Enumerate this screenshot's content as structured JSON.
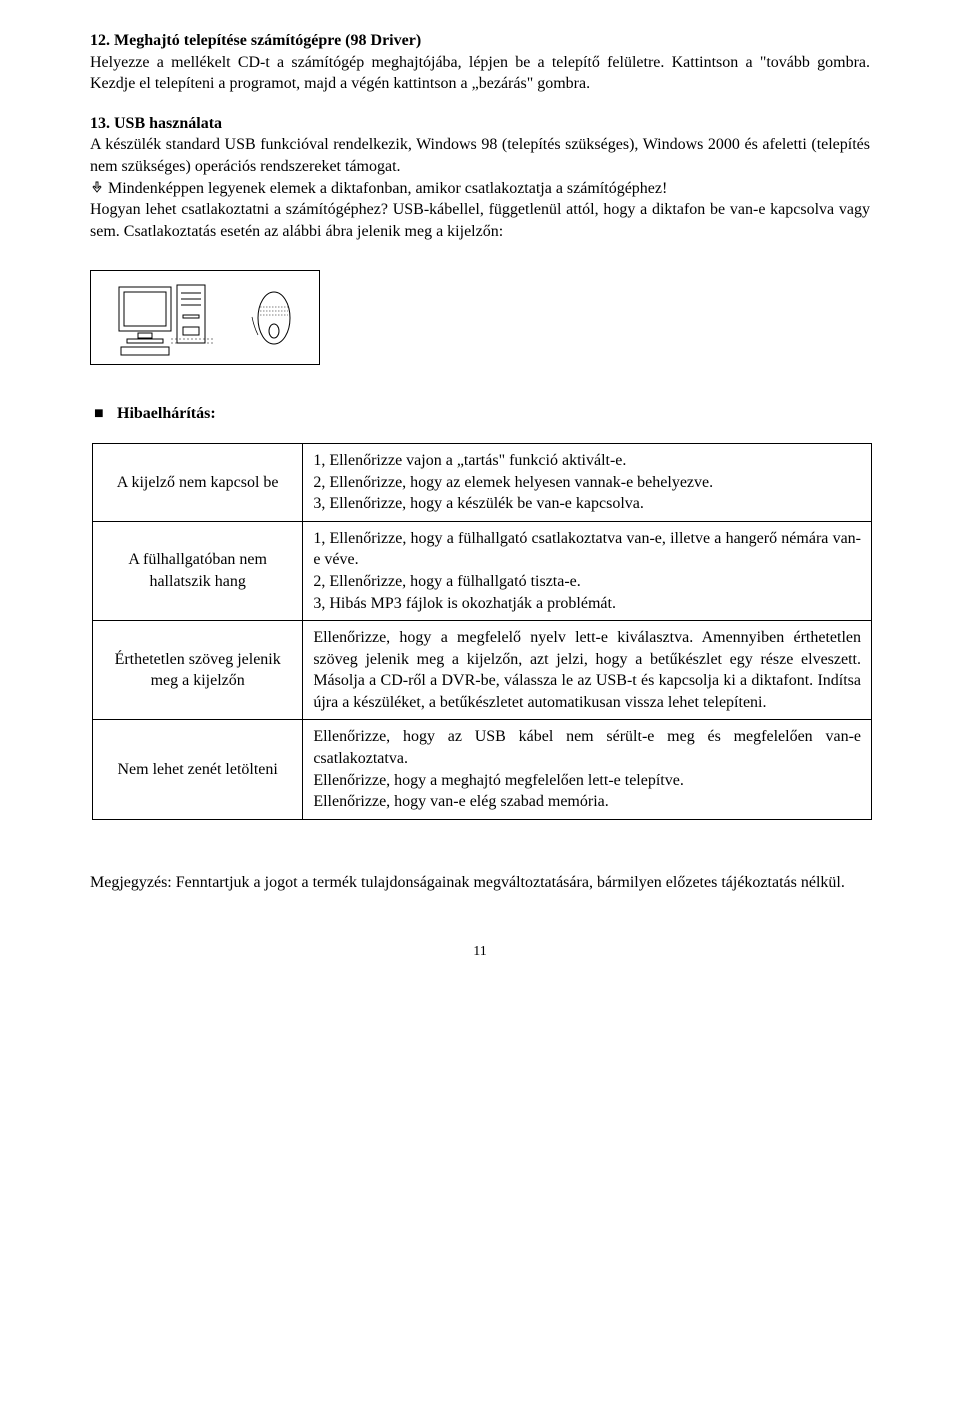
{
  "section12": {
    "title": "12. Meghajtó telepítése számítógépre (98 Driver)",
    "para": "Helyezze a mellékelt CD-t a számítógép meghajtójába, lépjen be a telepítő felületre. Kattintson a \"tovább gombra. Kezdje el telepíteni a programot, majd a végén kattintson a „bezárás\" gombra."
  },
  "section13": {
    "title": "13. USB használata",
    "para1": "A készülék standard USB funkcióval rendelkezik, Windows 98 (telepítés szükséges), Windows 2000 és afeletti (telepítés nem szükséges) operációs rendszereket támogat.",
    "para2": "Mindenképpen legyenek elemek a diktafonban, amikor csatlakoztatja a számítógéphez!",
    "para3": "Hogyan lehet csatlakoztatni a számítógéphez? USB-kábellel, függetlenül attól, hogy a diktafon be van-e kapcsolva vagy sem. Csatlakoztatás esetén az alábbi ábra jelenik meg a kijelzőn:"
  },
  "troubleshoot": {
    "title": "Hibaelhárítás:",
    "rows": [
      {
        "problem": "A kijelző nem kapcsol be",
        "solution": "1, Ellenőrizze vajon a „tartás\" funkció aktivált-e.\n2, Ellenőrizze, hogy az elemek helyesen vannak-e behelyezve.\n3, Ellenőrizze, hogy a készülék be van-e kapcsolva."
      },
      {
        "problem": "A fülhallgatóban nem hallatszik hang",
        "solution": "1, Ellenőrizze, hogy a fülhallgató csatlakoztatva van-e, illetve a hangerő némára van-e véve.\n2, Ellenőrizze, hogy a fülhallgató tiszta-e.\n3, Hibás MP3 fájlok is okozhatják a problémát."
      },
      {
        "problem": "Érthetetlen szöveg jelenik meg a kijelzőn",
        "solution": "Ellenőrizze, hogy a megfelelő nyelv lett-e kiválasztva. Amennyiben érthetetlen szöveg jelenik meg a kijelzőn, azt jelzi, hogy a betűkészlet egy része elveszett. Másolja a CD-ről a DVR-be, válassza le az USB-t és kapcsolja ki a diktafont. Indítsa újra a készüléket, a betűkészletet automatikusan vissza lehet telepíteni."
      },
      {
        "problem": "Nem lehet zenét letölteni",
        "solution": "Ellenőrizze, hogy az USB kábel nem sérült-e meg és megfelelően van-e csatlakoztatva.\nEllenőrizze, hogy a meghajtó megfelelően lett-e telepítve.\nEllenőrizze, hogy van-e elég szabad memória."
      }
    ]
  },
  "note": "Megjegyzés: Fenntartjuk a jogot a termék tulajdonságainak megváltoztatására, bármilyen előzetes tájékoztatás nélkül.",
  "pageNumber": "11",
  "colors": {
    "text": "#000000",
    "background": "#ffffff",
    "border": "#000000"
  }
}
